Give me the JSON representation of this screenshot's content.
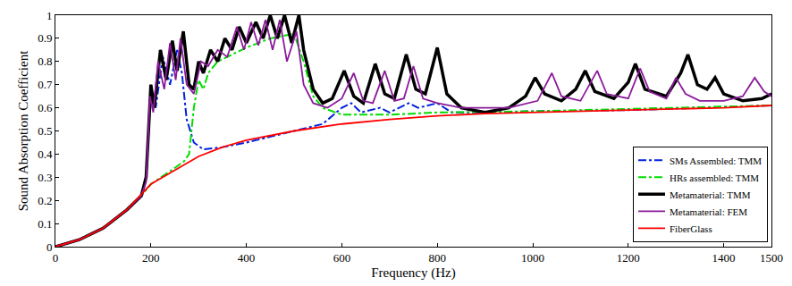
{
  "chart_data": {
    "type": "line",
    "x_label": "Frequency (Hz)",
    "y_label": "Sound Absorption Coefficient",
    "xlim": [
      0,
      1500
    ],
    "xticks": [
      0,
      200,
      400,
      600,
      800,
      1000,
      1200,
      1400,
      1500
    ],
    "ylim": [
      0,
      1
    ],
    "yticks": [
      0,
      0.1,
      0.2,
      0.3,
      0.4,
      0.5,
      0.6,
      0.7,
      0.8,
      0.9,
      1
    ],
    "grid": false,
    "legend": "lower right",
    "series": [
      {
        "name": "SMs Assembled: TMM",
        "color": "#0022dd",
        "line_style": "dashdot",
        "x": [
          0,
          50,
          100,
          150,
          180,
          190,
          200,
          210,
          225,
          240,
          255,
          265,
          275,
          290,
          310,
          350,
          400,
          500,
          560,
          600,
          620,
          640,
          680,
          700,
          740,
          760,
          800,
          830,
          900,
          1000,
          1200,
          1500
        ],
        "values": [
          0,
          0.03,
          0.08,
          0.16,
          0.22,
          0.3,
          0.68,
          0.6,
          0.82,
          0.7,
          0.85,
          0.75,
          0.55,
          0.45,
          0.42,
          0.43,
          0.45,
          0.5,
          0.53,
          0.6,
          0.62,
          0.58,
          0.6,
          0.58,
          0.62,
          0.6,
          0.62,
          0.58,
          0.58,
          0.585,
          0.59,
          0.61
        ]
      },
      {
        "name": "HRs assembled: TMM",
        "color": "#00dd00",
        "line_style": "dashdot",
        "x": [
          0,
          50,
          100,
          150,
          180,
          200,
          250,
          270,
          280,
          290,
          300,
          310,
          320,
          340,
          360,
          400,
          450,
          500,
          520,
          540,
          560,
          600,
          700,
          800,
          1000,
          1500
        ],
        "values": [
          0,
          0.03,
          0.08,
          0.16,
          0.22,
          0.27,
          0.34,
          0.37,
          0.4,
          0.6,
          0.72,
          0.68,
          0.75,
          0.8,
          0.82,
          0.86,
          0.9,
          0.92,
          0.8,
          0.65,
          0.6,
          0.57,
          0.57,
          0.58,
          0.585,
          0.61
        ]
      },
      {
        "name": "Metamaterial: TMM",
        "color": "#000000",
        "line_style": "solid",
        "x": [
          0,
          50,
          100,
          150,
          180,
          190,
          200,
          207,
          220,
          232,
          245,
          255,
          268,
          280,
          290,
          300,
          310,
          325,
          340,
          355,
          370,
          385,
          400,
          420,
          435,
          450,
          465,
          480,
          495,
          510,
          520,
          540,
          560,
          580,
          605,
          625,
          645,
          670,
          690,
          710,
          735,
          755,
          775,
          800,
          820,
          850,
          900,
          950,
          985,
          1005,
          1025,
          1060,
          1090,
          1110,
          1130,
          1170,
          1200,
          1215,
          1235,
          1280,
          1310,
          1325,
          1345,
          1365,
          1382,
          1400,
          1440,
          1480,
          1500
        ],
        "values": [
          0,
          0.03,
          0.08,
          0.16,
          0.22,
          0.3,
          0.7,
          0.6,
          0.85,
          0.72,
          0.89,
          0.76,
          0.93,
          0.7,
          0.68,
          0.8,
          0.75,
          0.85,
          0.8,
          0.9,
          0.85,
          0.95,
          0.88,
          0.97,
          0.9,
          1.0,
          0.9,
          1.0,
          0.88,
          1.0,
          0.85,
          0.68,
          0.62,
          0.64,
          0.76,
          0.65,
          0.62,
          0.79,
          0.66,
          0.64,
          0.83,
          0.68,
          0.66,
          0.86,
          0.66,
          0.6,
          0.58,
          0.6,
          0.65,
          0.73,
          0.66,
          0.63,
          0.68,
          0.76,
          0.67,
          0.64,
          0.71,
          0.79,
          0.68,
          0.65,
          0.75,
          0.83,
          0.7,
          0.68,
          0.73,
          0.66,
          0.63,
          0.64,
          0.66
        ]
      },
      {
        "name": "Metamaterial: FEM",
        "color": "#8b1a9a",
        "line_style": "solid",
        "x": [
          0,
          50,
          100,
          150,
          180,
          190,
          198,
          205,
          215,
          228,
          240,
          252,
          262,
          275,
          290,
          305,
          320,
          340,
          360,
          380,
          395,
          410,
          425,
          440,
          455,
          470,
          485,
          505,
          520,
          540,
          570,
          600,
          625,
          645,
          665,
          690,
          710,
          730,
          750,
          770,
          800,
          850,
          950,
          1010,
          1040,
          1060,
          1100,
          1135,
          1155,
          1200,
          1225,
          1245,
          1280,
          1300,
          1320,
          1350,
          1400,
          1440,
          1465,
          1485,
          1500
        ],
        "values": [
          0,
          0.03,
          0.08,
          0.16,
          0.22,
          0.28,
          0.65,
          0.58,
          0.8,
          0.68,
          0.88,
          0.72,
          0.9,
          0.7,
          0.66,
          0.8,
          0.78,
          0.85,
          0.82,
          0.95,
          0.85,
          0.97,
          0.87,
          0.98,
          0.85,
          0.98,
          0.8,
          0.93,
          0.7,
          0.62,
          0.6,
          0.64,
          0.75,
          0.63,
          0.62,
          0.76,
          0.63,
          0.64,
          0.78,
          0.64,
          0.62,
          0.6,
          0.6,
          0.63,
          0.75,
          0.65,
          0.63,
          0.76,
          0.66,
          0.64,
          0.77,
          0.67,
          0.64,
          0.73,
          0.66,
          0.63,
          0.63,
          0.65,
          0.73,
          0.67,
          0.65
        ]
      },
      {
        "name": "FiberGlass",
        "color": "#ff0000",
        "line_style": "solid",
        "x": [
          0,
          50,
          100,
          150,
          200,
          250,
          300,
          350,
          400,
          500,
          600,
          700,
          800,
          900,
          1000,
          1100,
          1200,
          1300,
          1400,
          1500
        ],
        "values": [
          0,
          0.03,
          0.08,
          0.16,
          0.27,
          0.33,
          0.39,
          0.43,
          0.46,
          0.5,
          0.53,
          0.55,
          0.565,
          0.575,
          0.58,
          0.585,
          0.59,
          0.595,
          0.6,
          0.61
        ]
      }
    ]
  }
}
